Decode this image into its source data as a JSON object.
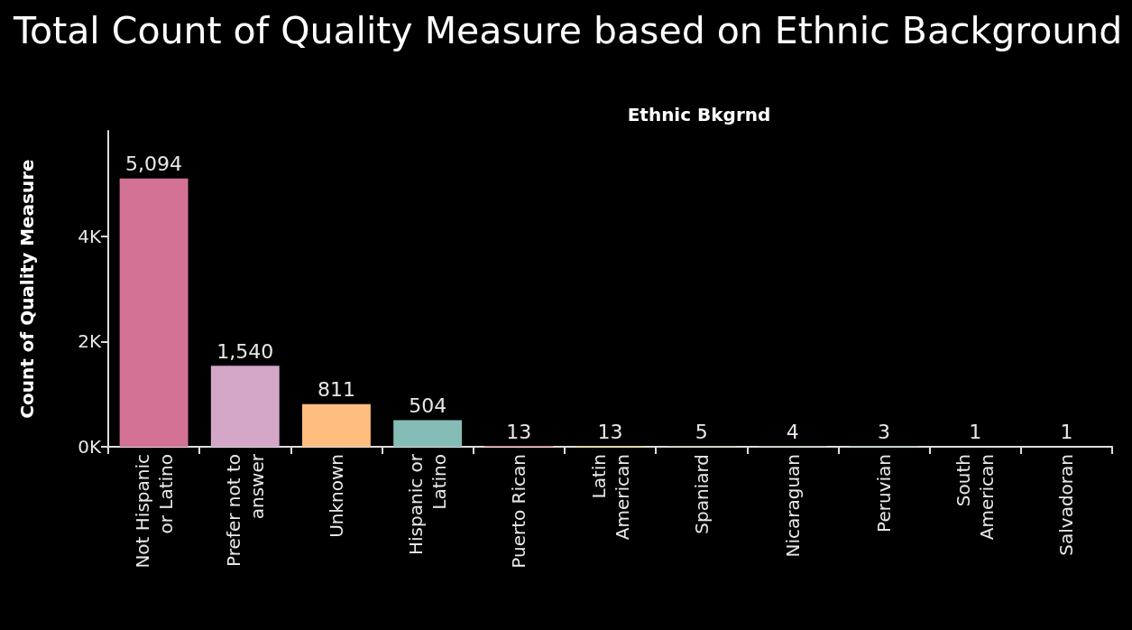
{
  "chart_data": {
    "type": "bar",
    "title": "Total Count of Quality Measure based on Ethnic Background",
    "xlabel": "Ethnic Bkgrnd",
    "ylabel": "Count of Quality Measure",
    "categories": [
      "Not Hispanic\nor Latino",
      "Prefer not to\nanswer",
      "Unknown",
      "Hispanic or\nLatino",
      "Puerto Rican",
      "Latin\nAmerican",
      "Spaniard",
      "Nicaraguan",
      "Peruvian",
      "South\nAmerican",
      "Salvadoran"
    ],
    "values": [
      5094,
      1540,
      811,
      504,
      13,
      13,
      5,
      4,
      3,
      1,
      1
    ],
    "colors": [
      "#d37295",
      "#d4a6c8",
      "#ffbe7d",
      "#86bcb6",
      "#e15759",
      "#f1ce63",
      "#b6992d",
      "#59a14f",
      "#499894",
      "#4e79a7",
      "#f28e2b"
    ],
    "ylim": [
      0,
      6000
    ],
    "yticks": [
      {
        "value": 0,
        "label": "0K"
      },
      {
        "value": 2000,
        "label": "2K"
      },
      {
        "value": 4000,
        "label": "4K"
      }
    ],
    "value_labels": [
      "5,094",
      "1,540",
      "811",
      "504",
      "13",
      "13",
      "5",
      "4",
      "3",
      "1",
      "1"
    ],
    "grid": false
  }
}
